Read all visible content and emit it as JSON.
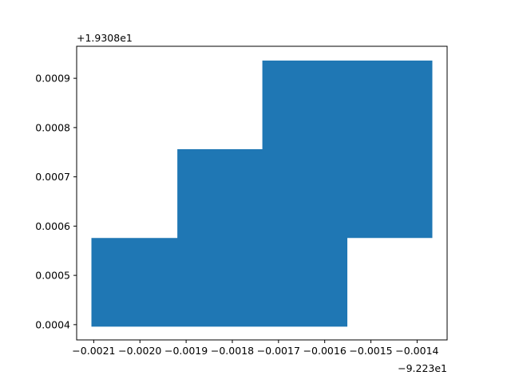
{
  "chart_data": {
    "type": "area",
    "title": "",
    "xlabel": "",
    "ylabel": "",
    "x_offset_label": "−9.223e1",
    "y_offset_label": "+1.9308e1",
    "xlim": [
      -0.002137,
      -0.001335
    ],
    "ylim": [
      0.000369,
      0.000965
    ],
    "x_ticks": [
      {
        "value": -0.0021,
        "label": "−0.0021"
      },
      {
        "value": -0.002,
        "label": "−0.0020"
      },
      {
        "value": -0.0019,
        "label": "−0.0019"
      },
      {
        "value": -0.0018,
        "label": "−0.0018"
      },
      {
        "value": -0.0017,
        "label": "−0.0017"
      },
      {
        "value": -0.0016,
        "label": "−0.0016"
      },
      {
        "value": -0.0015,
        "label": "−0.0015"
      },
      {
        "value": -0.0014,
        "label": "−0.0014"
      }
    ],
    "y_ticks": [
      {
        "value": 0.0004,
        "label": "0.0004"
      },
      {
        "value": 0.0005,
        "label": "0.0005"
      },
      {
        "value": 0.0006,
        "label": "0.0006"
      },
      {
        "value": 0.0007,
        "label": "0.0007"
      },
      {
        "value": 0.0008,
        "label": "0.0008"
      },
      {
        "value": 0.0009,
        "label": "0.0009"
      }
    ],
    "grid": false,
    "fill_color": "#1f77b4",
    "polygon": [
      [
        -0.002105,
        0.000396
      ],
      [
        -0.001551,
        0.000396
      ],
      [
        -0.001551,
        0.000576
      ],
      [
        -0.001367,
        0.000576
      ],
      [
        -0.001367,
        0.000936
      ],
      [
        -0.001735,
        0.000936
      ],
      [
        -0.001735,
        0.000756
      ],
      [
        -0.001919,
        0.000756
      ],
      [
        -0.001919,
        0.000576
      ],
      [
        -0.002105,
        0.000576
      ]
    ]
  }
}
